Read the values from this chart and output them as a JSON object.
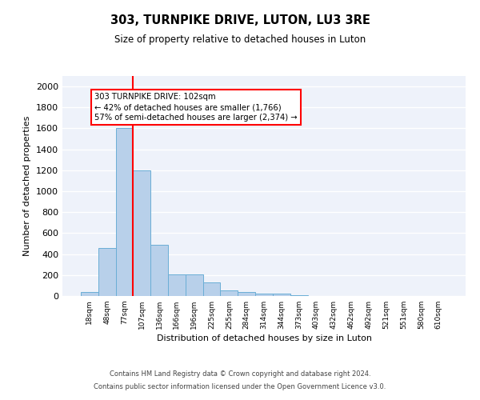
{
  "title": "303, TURNPIKE DRIVE, LUTON, LU3 3RE",
  "subtitle": "Size of property relative to detached houses in Luton",
  "xlabel": "Distribution of detached houses by size in Luton",
  "ylabel": "Number of detached properties",
  "bar_labels": [
    "18sqm",
    "48sqm",
    "77sqm",
    "107sqm",
    "136sqm",
    "166sqm",
    "196sqm",
    "225sqm",
    "255sqm",
    "284sqm",
    "314sqm",
    "344sqm",
    "373sqm",
    "403sqm",
    "432sqm",
    "462sqm",
    "492sqm",
    "521sqm",
    "551sqm",
    "580sqm",
    "610sqm"
  ],
  "bar_values": [
    35,
    460,
    1600,
    1200,
    490,
    210,
    210,
    130,
    50,
    40,
    25,
    20,
    10,
    0,
    0,
    0,
    0,
    0,
    0,
    0,
    0
  ],
  "bar_color": "#b8d0ea",
  "bar_edgecolor": "#6aaed6",
  "vline_color": "red",
  "annotation_text": "303 TURNPIKE DRIVE: 102sqm\n← 42% of detached houses are smaller (1,766)\n57% of semi-detached houses are larger (2,374) →",
  "annotation_box_color": "white",
  "annotation_box_edgecolor": "red",
  "ylim": [
    0,
    2100
  ],
  "yticks": [
    0,
    200,
    400,
    600,
    800,
    1000,
    1200,
    1400,
    1600,
    1800,
    2000
  ],
  "footer_line1": "Contains HM Land Registry data © Crown copyright and database right 2024.",
  "footer_line2": "Contains public sector information licensed under the Open Government Licence v3.0.",
  "bg_color": "#eef2fa",
  "grid_color": "#ffffff",
  "fig_width": 6.0,
  "fig_height": 5.0,
  "dpi": 100
}
